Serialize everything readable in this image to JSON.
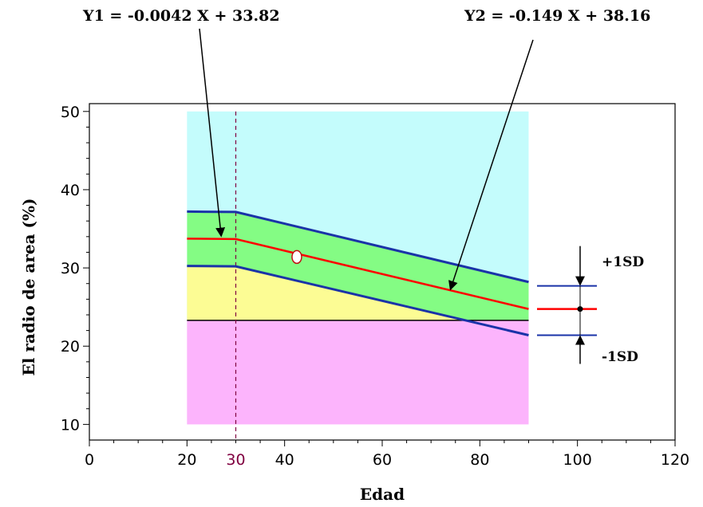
{
  "chart_data": {
    "type": "line",
    "xlabel": "Edad",
    "ylabel": "El radio de area (%)",
    "xlim": [
      0,
      120
    ],
    "ylim": [
      8,
      51
    ],
    "x_ticks": [
      0,
      20,
      30,
      40,
      60,
      80,
      100,
      120
    ],
    "y_ticks": [
      10,
      20,
      30,
      40,
      50
    ],
    "highlight_x_tick": 30,
    "grid": false,
    "equations": {
      "y1": "Y1 = -0.0042 X + 33.82",
      "y2": "Y2 = -0.149 X + 38.16"
    },
    "bands": {
      "x_range": [
        20,
        90
      ],
      "cyan": {
        "y_range": [
          23.3,
          50
        ],
        "color": "#c4fcfc"
      },
      "pink": {
        "y_range": [
          10,
          23.3
        ],
        "color": "#fcb4fc"
      },
      "yellow_color": "#fcfc94",
      "green_color": "#84fc84"
    },
    "threshold_y": 23.3,
    "breakpoint_x": 30,
    "series": [
      {
        "name": "Y1 / Y2",
        "color": "#ff0000",
        "x": [
          20,
          30,
          90
        ],
        "y": [
          33.74,
          33.69,
          24.75
        ]
      },
      {
        "name": "+1SD",
        "color": "#1a33a8",
        "x": [
          20,
          30,
          90
        ],
        "y": [
          37.2,
          37.15,
          28.2
        ]
      },
      {
        "name": "-1SD",
        "color": "#1a33a8",
        "x": [
          20,
          30,
          90
        ],
        "y": [
          30.25,
          30.2,
          21.4
        ]
      }
    ],
    "marker_point": {
      "x": 42.5,
      "y": 31.4
    },
    "sd_indicator": {
      "plus_label": "+1SD",
      "minus_label": "-1SD"
    }
  }
}
